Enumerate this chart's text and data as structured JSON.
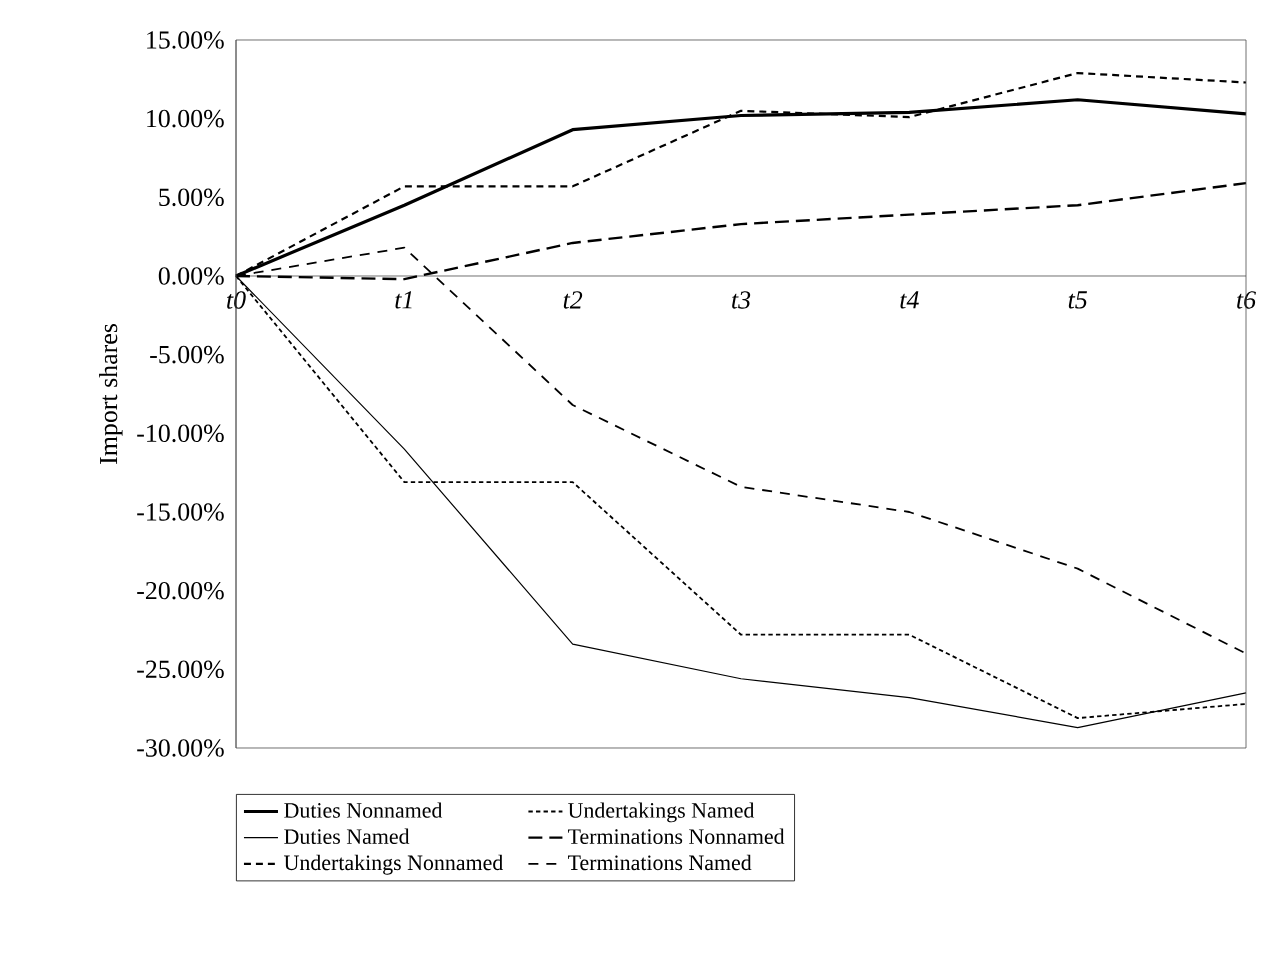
{
  "chart_data": {
    "type": "line",
    "ylabel": "Import shares",
    "categories": [
      "t0",
      "t1",
      "t2",
      "t3",
      "t4",
      "t5",
      "t6"
    ],
    "ylim": [
      -30,
      15
    ],
    "yticks": [
      {
        "value": 15,
        "label": "15.00%"
      },
      {
        "value": 10,
        "label": "10.00%"
      },
      {
        "value": 5,
        "label": "5.00%"
      },
      {
        "value": 0,
        "label": "0.00%"
      },
      {
        "value": -5,
        "label": "-5.00%"
      },
      {
        "value": -10,
        "label": "-10.00%"
      },
      {
        "value": -15,
        "label": "-15.00%"
      },
      {
        "value": -20,
        "label": "-20.00%"
      },
      {
        "value": -25,
        "label": "-25.00%"
      },
      {
        "value": -30,
        "label": "-30.00%"
      }
    ],
    "grid": false,
    "legend": "bottom",
    "marker": "none",
    "series": [
      {
        "name": "Duties Nonnamed",
        "color": "#000000",
        "line_style": "solid",
        "values": [
          0,
          4.5,
          9.3,
          10.2,
          10.4,
          11.2,
          10.3
        ]
      },
      {
        "name": "Undertakings Named",
        "color": "#000000",
        "line_style": "dotted",
        "values": [
          0,
          -13.1,
          -13.1,
          -22.8,
          -22.8,
          -28.1,
          -27.2
        ]
      },
      {
        "name": "Duties Named",
        "color": "#000000",
        "line_style": "solid",
        "values": [
          0,
          -11,
          -23.4,
          -25.6,
          -26.8,
          -28.7,
          -26.5
        ]
      },
      {
        "name": "Terminations Nonnamed",
        "color": "#000000",
        "line_style": "dashed",
        "values": [
          0,
          -0.2,
          2.1,
          3.3,
          3.9,
          4.5,
          5.9
        ]
      },
      {
        "name": "Undertakings Nonnamed",
        "color": "#000000",
        "line_style": "dashed",
        "values": [
          0,
          5.7,
          5.7,
          10.5,
          10.1,
          12.9,
          12.3
        ]
      },
      {
        "name": "Terminations Named",
        "color": "#000000",
        "line_style": "dashed",
        "values": [
          0,
          1.8,
          -8.2,
          -13.4,
          -15.0,
          -18.6,
          -24.0
        ]
      }
    ]
  }
}
